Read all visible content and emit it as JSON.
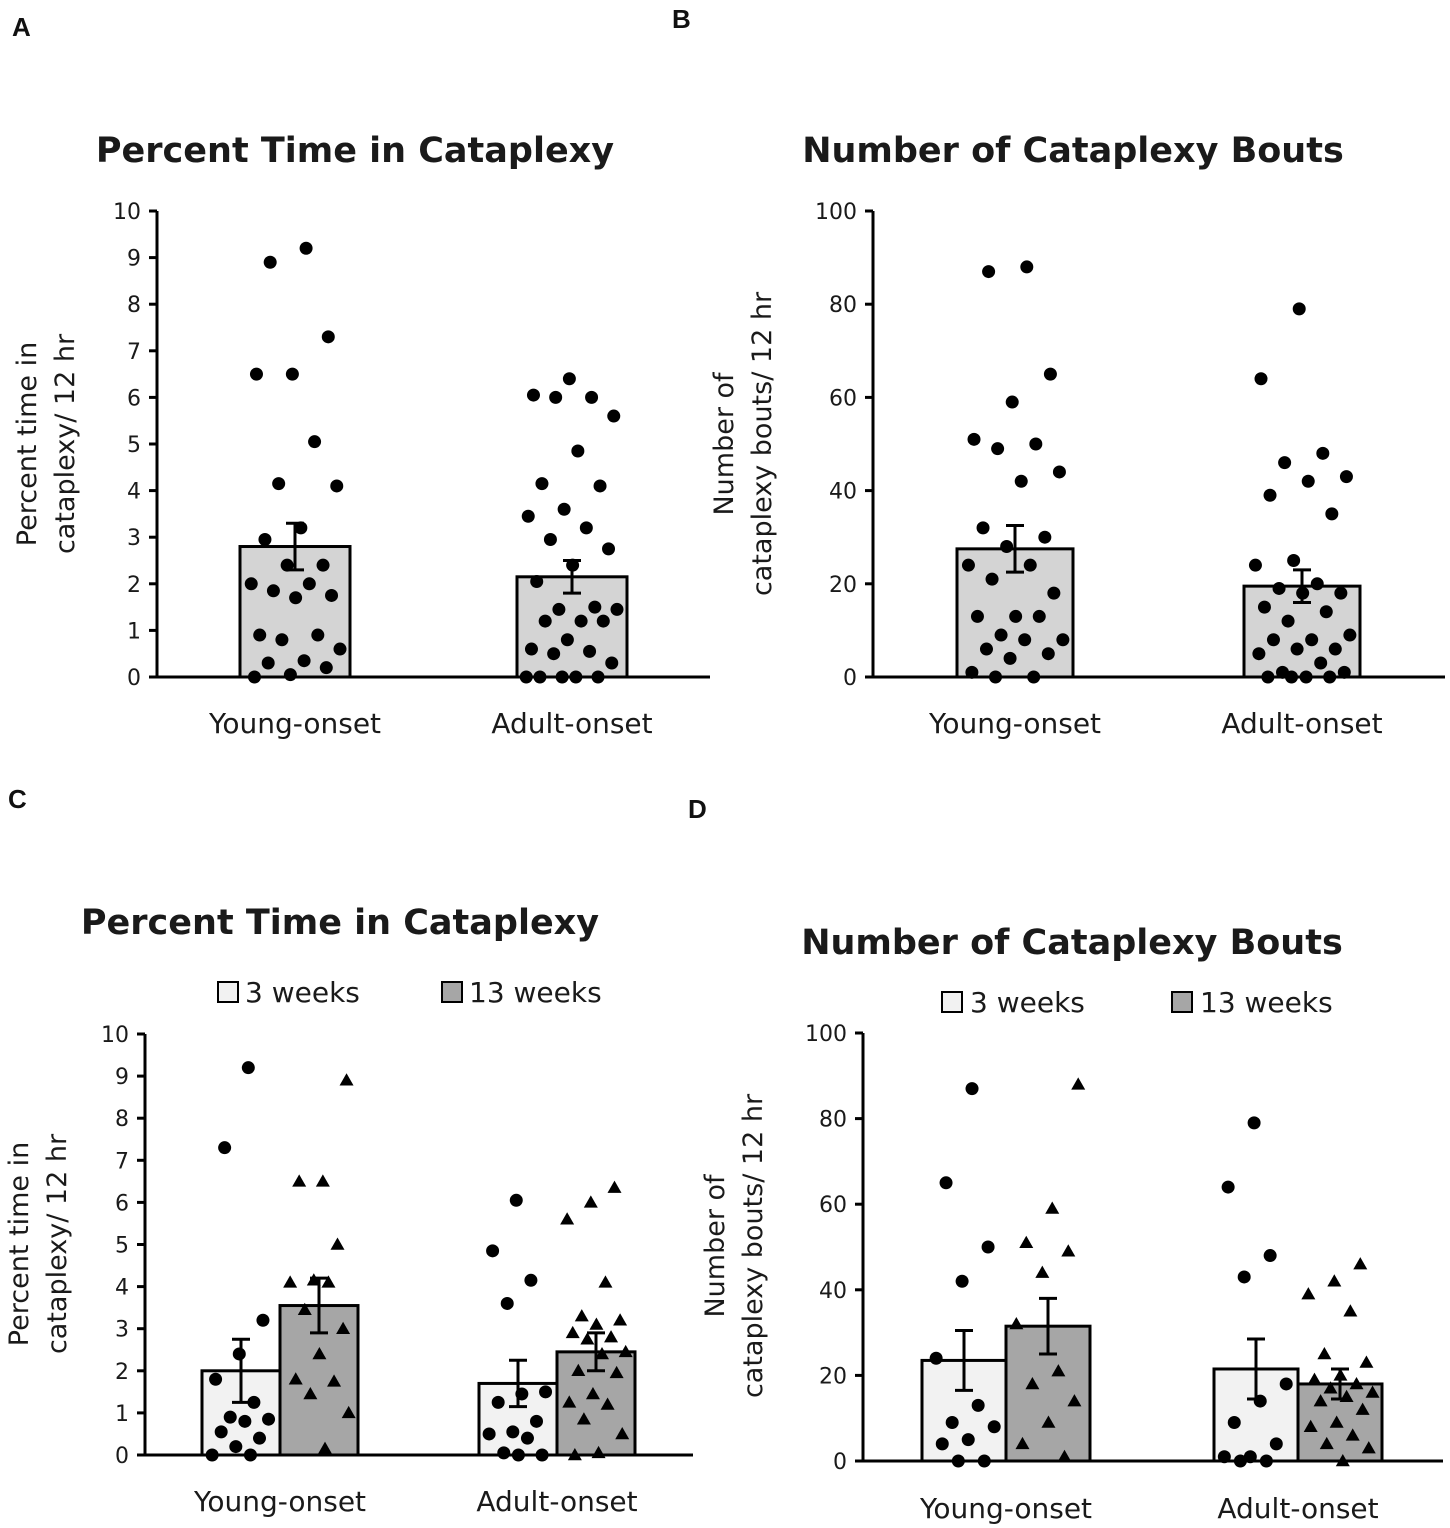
{
  "panel_letters": {
    "A": "A",
    "B": "B",
    "C": "C",
    "D": "D"
  },
  "colors": {
    "bar_light": "#d4d4d4",
    "bar_white": "#f2f2f2",
    "bar_dark": "#a6a6a6",
    "marker": "#000000",
    "axis": "#000000"
  },
  "chart_data": [
    {
      "panel": "A",
      "type": "bar",
      "title": "Percent Time in Cataplexy",
      "ylabel_lines": [
        "Percent time in",
        "cataplexy/ 12 hr"
      ],
      "xlabel": "",
      "categories": [
        "Young-onset",
        "Adult-onset"
      ],
      "ylim": [
        0,
        10
      ],
      "yticks": [
        "0",
        "1",
        "2",
        "3",
        "4",
        "5",
        "6",
        "7",
        "8",
        "9",
        "10"
      ],
      "legend": [],
      "series": [
        {
          "name": "all",
          "values": [
            2.8,
            2.15
          ],
          "errors": [
            0.5,
            0.35
          ],
          "marker": "circle",
          "points": [
            [
              9.2,
              8.9,
              7.3,
              6.5,
              6.5,
              5.05,
              4.15,
              4.1,
              3.2,
              2.95,
              2.4,
              2.4,
              2.0,
              2.0,
              1.85,
              1.75,
              1.7,
              0.9,
              0.9,
              0.8,
              0.6,
              0.35,
              0.3,
              0.2,
              0.05,
              0.0
            ],
            [
              6.4,
              6.05,
              6.0,
              6.0,
              5.6,
              4.85,
              4.15,
              4.1,
              3.6,
              3.45,
              3.2,
              2.95,
              2.75,
              2.4,
              2.05,
              1.5,
              1.45,
              1.45,
              1.2,
              1.2,
              1.2,
              0.8,
              0.6,
              0.55,
              0.5,
              0.3,
              0.0,
              0.0,
              0.0,
              0.0,
              0.0
            ]
          ]
        }
      ]
    },
    {
      "panel": "B",
      "type": "bar",
      "title": "Number of Cataplexy Bouts",
      "ylabel_lines": [
        "Number of",
        "cataplexy bouts/ 12 hr"
      ],
      "xlabel": "",
      "categories": [
        "Young-onset",
        "Adult-onset"
      ],
      "ylim": [
        0,
        100
      ],
      "yticks": [
        "0",
        "20",
        "40",
        "60",
        "80",
        "100"
      ],
      "legend": [],
      "series": [
        {
          "name": "all",
          "values": [
            27.5,
            19.5
          ],
          "errors": [
            5.0,
            3.5
          ],
          "marker": "circle",
          "points": [
            [
              88,
              87,
              65,
              59,
              51,
              50,
              49,
              44,
              42,
              32,
              30,
              28,
              24,
              24,
              21,
              18,
              13,
              13,
              13,
              9,
              8,
              8,
              6,
              5,
              4,
              1,
              0,
              0
            ],
            [
              79,
              64,
              48,
              46,
              43,
              42,
              39,
              35,
              25,
              24,
              20,
              19,
              18,
              18,
              15,
              14,
              12,
              9,
              8,
              8,
              6,
              6,
              5,
              3,
              1,
              1,
              0,
              0,
              0,
              0
            ]
          ]
        }
      ]
    },
    {
      "panel": "C",
      "type": "bar",
      "title": "Percent Time in Cataplexy",
      "ylabel_lines": [
        "Percent time in",
        "cataplexy/ 12 hr"
      ],
      "xlabel": "",
      "categories": [
        "Young-onset",
        "Adult-onset"
      ],
      "ylim": [
        0,
        10
      ],
      "yticks": [
        "0",
        "1",
        "2",
        "3",
        "4",
        "5",
        "6",
        "7",
        "8",
        "9",
        "10"
      ],
      "legend": [
        {
          "label": "3 weeks",
          "color": "#f2f2f2"
        },
        {
          "label": "13 weeks",
          "color": "#a6a6a6"
        }
      ],
      "series": [
        {
          "name": "3 weeks",
          "values": [
            2.0,
            1.7
          ],
          "errors": [
            0.75,
            0.55
          ],
          "marker": "circle",
          "points": [
            [
              9.2,
              7.3,
              3.2,
              2.4,
              1.8,
              1.25,
              0.9,
              0.85,
              0.8,
              0.55,
              0.4,
              0.2,
              0.0,
              0.0
            ],
            [
              6.05,
              4.85,
              4.15,
              3.6,
              1.5,
              1.45,
              1.25,
              0.8,
              0.55,
              0.5,
              0.4,
              0.05,
              0.0,
              0.0
            ]
          ]
        },
        {
          "name": "13 weeks",
          "values": [
            3.55,
            2.45
          ],
          "errors": [
            0.65,
            0.45
          ],
          "marker": "triangle",
          "points": [
            [
              8.9,
              6.5,
              6.5,
              5.0,
              4.15,
              4.1,
              4.1,
              3.45,
              3.0,
              2.4,
              1.8,
              1.75,
              1.45,
              1.0,
              0.15
            ],
            [
              6.35,
              6.0,
              5.6,
              4.1,
              3.3,
              3.2,
              3.1,
              2.9,
              2.8,
              2.75,
              2.45,
              2.4,
              2.0,
              1.95,
              1.45,
              1.25,
              1.2,
              0.85,
              0.5,
              0.05,
              0.0
            ]
          ]
        }
      ]
    },
    {
      "panel": "D",
      "type": "bar",
      "title": "Number of Cataplexy Bouts",
      "ylabel_lines": [
        "Number of",
        "cataplexy bouts/ 12 hr"
      ],
      "xlabel": "",
      "categories": [
        "Young-onset",
        "Adult-onset"
      ],
      "ylim": [
        0,
        100
      ],
      "yticks": [
        "0",
        "20",
        "40",
        "60",
        "80",
        "100"
      ],
      "legend": [
        {
          "label": "3 weeks",
          "color": "#f2f2f2"
        },
        {
          "label": "13 weeks",
          "color": "#a6a6a6"
        }
      ],
      "series": [
        {
          "name": "3 weeks",
          "values": [
            23.5,
            21.5
          ],
          "errors": [
            7.0,
            7.0
          ],
          "marker": "circle",
          "points": [
            [
              87,
              65,
              50,
              42,
              24,
              13,
              9,
              8,
              5,
              4,
              0,
              0
            ],
            [
              79,
              64,
              48,
              43,
              18,
              14,
              9,
              4,
              1,
              1,
              0,
              0
            ]
          ]
        },
        {
          "name": "13 weeks",
          "values": [
            31.5,
            18.0
          ],
          "errors": [
            6.5,
            3.5
          ],
          "marker": "triangle",
          "points": [
            [
              88,
              59,
              51,
              49,
              44,
              32,
              21,
              18,
              14,
              9,
              4,
              1
            ],
            [
              46,
              42,
              39,
              35,
              25,
              23,
              20,
              19,
              18,
              17,
              16,
              15,
              14,
              12,
              9,
              8,
              6,
              4,
              3,
              0
            ]
          ]
        }
      ]
    }
  ]
}
